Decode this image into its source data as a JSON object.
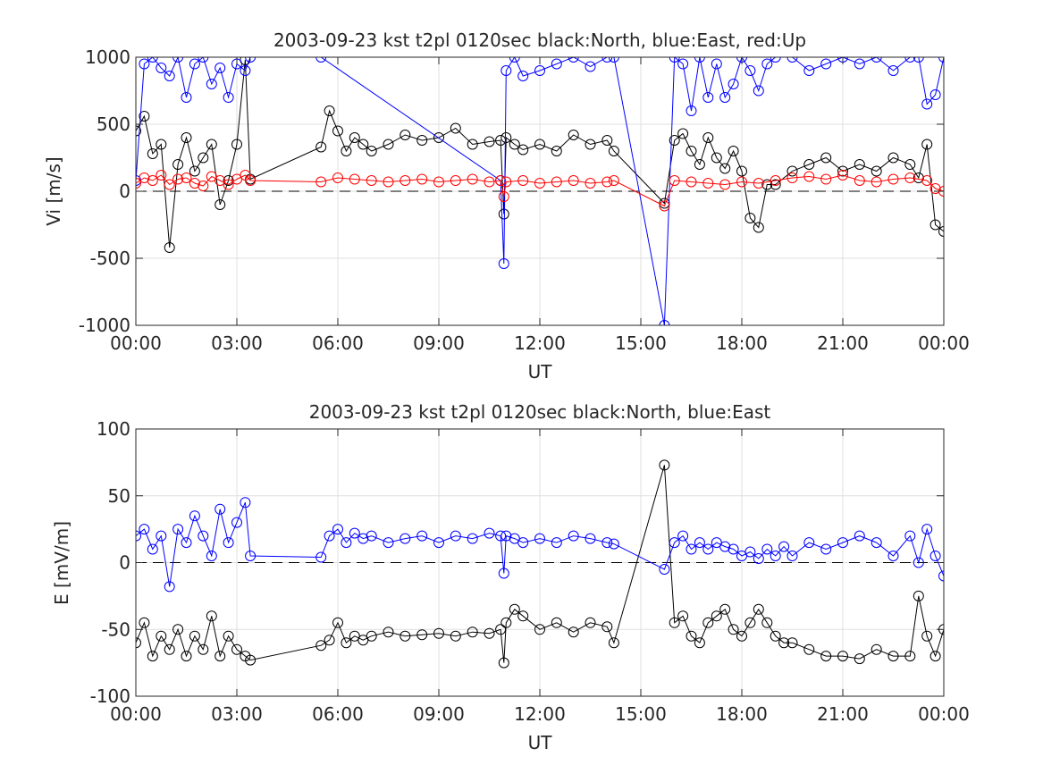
{
  "chart_data": [
    {
      "type": "line",
      "title": "2003-09-23 kst t2pl 0120sec black:North, blue:East, red:Up",
      "xlabel": "UT",
      "ylabel": "Vi [m/s]",
      "xlim": [
        "00:00",
        "24:00"
      ],
      "ylim": [
        -1000,
        1000
      ],
      "x_ticks": [
        "00:00",
        "03:00",
        "06:00",
        "09:00",
        "12:00",
        "15:00",
        "18:00",
        "21:00",
        "00:00"
      ],
      "y_ticks": [
        "-1000",
        "-500",
        "0",
        "500",
        "1000"
      ],
      "grid": true,
      "marker": "open circle",
      "reference_line": "dashed at 0",
      "segments_ut": [
        [
          "00:00",
          "03:24"
        ],
        [
          "05:30",
          "14:12"
        ],
        [
          "15:42",
          "24:00"
        ]
      ],
      "series": [
        {
          "name": "North",
          "color": "#000000",
          "x": [
            "00:00",
            "00:15",
            "00:30",
            "00:45",
            "01:00",
            "01:15",
            "01:30",
            "01:45",
            "02:00",
            "02:15",
            "02:30",
            "02:45",
            "03:00",
            "03:15",
            "03:24",
            "05:30",
            "05:45",
            "06:00",
            "06:15",
            "06:30",
            "06:45",
            "07:00",
            "07:30",
            "08:00",
            "08:30",
            "09:00",
            "09:30",
            "10:00",
            "10:30",
            "10:50",
            "10:56",
            "11:00",
            "11:15",
            "11:30",
            "12:00",
            "12:30",
            "13:00",
            "13:30",
            "14:00",
            "14:12",
            "15:42",
            "16:00",
            "16:15",
            "16:30",
            "16:45",
            "17:00",
            "17:15",
            "17:30",
            "17:45",
            "18:00",
            "18:15",
            "18:30",
            "18:45",
            "19:00",
            "19:30",
            "20:00",
            "20:30",
            "21:00",
            "21:30",
            "22:00",
            "22:30",
            "23:00",
            "23:15",
            "23:30",
            "23:45",
            "24:00"
          ],
          "values": [
            450,
            560,
            280,
            350,
            -420,
            200,
            400,
            150,
            250,
            350,
            -100,
            80,
            350,
            980,
            90,
            330,
            600,
            450,
            300,
            400,
            350,
            300,
            350,
            420,
            380,
            400,
            470,
            350,
            370,
            380,
            -170,
            400,
            350,
            310,
            350,
            300,
            420,
            350,
            380,
            300,
            -90,
            380,
            430,
            300,
            200,
            400,
            250,
            170,
            300,
            150,
            -200,
            -270,
            50,
            50,
            150,
            200,
            250,
            150,
            200,
            150,
            250,
            200,
            100,
            350,
            -250,
            -300
          ]
        },
        {
          "name": "East",
          "color": "#0000ff",
          "x": [
            "00:00",
            "00:15",
            "00:30",
            "00:45",
            "01:00",
            "01:15",
            "01:30",
            "01:45",
            "02:00",
            "02:15",
            "02:30",
            "02:45",
            "03:00",
            "03:15",
            "03:24",
            "05:30",
            "10:50",
            "10:56",
            "11:00",
            "11:15",
            "11:30",
            "12:00",
            "12:30",
            "13:00",
            "13:30",
            "14:00",
            "14:12",
            "15:42",
            "16:00",
            "16:15",
            "16:30",
            "16:45",
            "17:00",
            "17:15",
            "17:30",
            "17:45",
            "18:00",
            "18:15",
            "18:30",
            "18:45",
            "19:00",
            "19:30",
            "20:00",
            "20:30",
            "21:00",
            "21:30",
            "22:00",
            "22:30",
            "23:00",
            "23:15",
            "23:30",
            "23:45",
            "24:00"
          ],
          "values": [
            80,
            950,
            1000,
            920,
            860,
            1000,
            700,
            950,
            1000,
            800,
            920,
            700,
            950,
            900,
            1000,
            1000,
            80,
            -540,
            900,
            1000,
            860,
            900,
            950,
            1000,
            930,
            1000,
            1000,
            -1000,
            1000,
            950,
            600,
            1000,
            700,
            950,
            700,
            800,
            1000,
            900,
            750,
            950,
            1000,
            1000,
            900,
            950,
            1000,
            950,
            1000,
            900,
            1000,
            1000,
            650,
            720,
            1000
          ]
        },
        {
          "name": "Up",
          "color": "#ff0000",
          "x": [
            "00:00",
            "00:15",
            "00:30",
            "00:45",
            "01:00",
            "01:15",
            "01:30",
            "01:45",
            "02:00",
            "02:15",
            "02:30",
            "02:45",
            "03:00",
            "03:15",
            "03:24",
            "05:30",
            "06:00",
            "06:30",
            "07:00",
            "07:30",
            "08:00",
            "08:30",
            "09:00",
            "09:30",
            "10:00",
            "10:30",
            "10:50",
            "10:56",
            "11:00",
            "11:30",
            "12:00",
            "12:30",
            "13:00",
            "13:30",
            "14:00",
            "14:12",
            "15:42",
            "16:00",
            "16:30",
            "17:00",
            "17:30",
            "18:00",
            "18:30",
            "19:00",
            "19:30",
            "20:00",
            "20:30",
            "21:00",
            "21:30",
            "22:00",
            "22:30",
            "23:00",
            "23:30",
            "23:45",
            "24:00"
          ],
          "values": [
            60,
            100,
            80,
            120,
            50,
            90,
            100,
            60,
            40,
            110,
            80,
            50,
            90,
            120,
            80,
            70,
            100,
            90,
            80,
            70,
            80,
            90,
            70,
            80,
            90,
            70,
            80,
            -40,
            70,
            80,
            60,
            70,
            80,
            60,
            70,
            80,
            -110,
            80,
            70,
            60,
            50,
            70,
            60,
            80,
            100,
            110,
            90,
            120,
            80,
            70,
            90,
            100,
            80,
            20,
            0
          ]
        }
      ]
    },
    {
      "type": "line",
      "title": "2003-09-23 kst t2pl 0120sec black:North, blue:East",
      "xlabel": "UT",
      "ylabel": "E [mV/m]",
      "xlim": [
        "00:00",
        "24:00"
      ],
      "ylim": [
        -100,
        100
      ],
      "x_ticks": [
        "00:00",
        "03:00",
        "06:00",
        "09:00",
        "12:00",
        "15:00",
        "18:00",
        "21:00",
        "00:00"
      ],
      "y_ticks": [
        "-100",
        "-50",
        "0",
        "50",
        "100"
      ],
      "grid": true,
      "marker": "open circle",
      "reference_line": "dashed at 0",
      "segments_ut": [
        [
          "00:00",
          "03:24"
        ],
        [
          "05:30",
          "14:12"
        ],
        [
          "15:42",
          "24:00"
        ]
      ],
      "series": [
        {
          "name": "North",
          "color": "#000000",
          "x": [
            "00:00",
            "00:15",
            "00:30",
            "00:45",
            "01:00",
            "01:15",
            "01:30",
            "01:45",
            "02:00",
            "02:15",
            "02:30",
            "02:45",
            "03:00",
            "03:15",
            "03:24",
            "05:30",
            "05:45",
            "06:00",
            "06:15",
            "06:30",
            "06:45",
            "07:00",
            "07:30",
            "08:00",
            "08:30",
            "09:00",
            "09:30",
            "10:00",
            "10:30",
            "10:50",
            "10:56",
            "11:00",
            "11:15",
            "11:30",
            "12:00",
            "12:30",
            "13:00",
            "13:30",
            "14:00",
            "14:12",
            "15:42",
            "16:00",
            "16:15",
            "16:30",
            "16:45",
            "17:00",
            "17:15",
            "17:30",
            "17:45",
            "18:00",
            "18:15",
            "18:30",
            "18:45",
            "19:00",
            "19:15",
            "19:30",
            "20:00",
            "20:30",
            "21:00",
            "21:30",
            "22:00",
            "22:30",
            "23:00",
            "23:15",
            "23:30",
            "23:45",
            "24:00"
          ],
          "values": [
            -60,
            -45,
            -70,
            -55,
            -65,
            -50,
            -70,
            -55,
            -65,
            -40,
            -70,
            -55,
            -65,
            -70,
            -73,
            -62,
            -58,
            -45,
            -60,
            -55,
            -58,
            -55,
            -52,
            -55,
            -54,
            -53,
            -55,
            -52,
            -53,
            -50,
            -75,
            -45,
            -35,
            -40,
            -50,
            -45,
            -52,
            -45,
            -48,
            -60,
            73,
            -45,
            -40,
            -55,
            -60,
            -45,
            -40,
            -35,
            -50,
            -55,
            -45,
            -35,
            -45,
            -55,
            -60,
            -60,
            -65,
            -70,
            -70,
            -72,
            -65,
            -70,
            -70,
            -25,
            -55,
            -70,
            -50
          ]
        },
        {
          "name": "East",
          "color": "#0000ff",
          "x": [
            "00:00",
            "00:15",
            "00:30",
            "00:45",
            "01:00",
            "01:15",
            "01:30",
            "01:45",
            "02:00",
            "02:15",
            "02:30",
            "02:45",
            "03:00",
            "03:15",
            "03:24",
            "05:30",
            "05:45",
            "06:00",
            "06:15",
            "06:30",
            "06:45",
            "07:00",
            "07:30",
            "08:00",
            "08:30",
            "09:00",
            "09:30",
            "10:00",
            "10:30",
            "10:50",
            "10:56",
            "11:00",
            "11:15",
            "11:30",
            "12:00",
            "12:30",
            "13:00",
            "13:30",
            "14:00",
            "14:12",
            "15:42",
            "16:00",
            "16:15",
            "16:30",
            "16:45",
            "17:00",
            "17:15",
            "17:30",
            "17:45",
            "18:00",
            "18:15",
            "18:30",
            "18:45",
            "19:00",
            "19:15",
            "19:30",
            "20:00",
            "20:30",
            "21:00",
            "21:30",
            "22:00",
            "22:30",
            "23:00",
            "23:15",
            "23:30",
            "23:45",
            "24:00"
          ],
          "values": [
            20,
            25,
            10,
            20,
            -18,
            25,
            15,
            35,
            20,
            5,
            40,
            15,
            30,
            45,
            5,
            4,
            20,
            25,
            15,
            22,
            18,
            20,
            15,
            18,
            20,
            15,
            20,
            18,
            22,
            20,
            -8,
            20,
            18,
            15,
            18,
            15,
            20,
            18,
            15,
            14,
            -5,
            15,
            20,
            10,
            15,
            10,
            15,
            12,
            10,
            5,
            8,
            3,
            10,
            5,
            12,
            5,
            15,
            10,
            15,
            20,
            15,
            5,
            20,
            0,
            25,
            5,
            -10
          ]
        }
      ]
    }
  ]
}
